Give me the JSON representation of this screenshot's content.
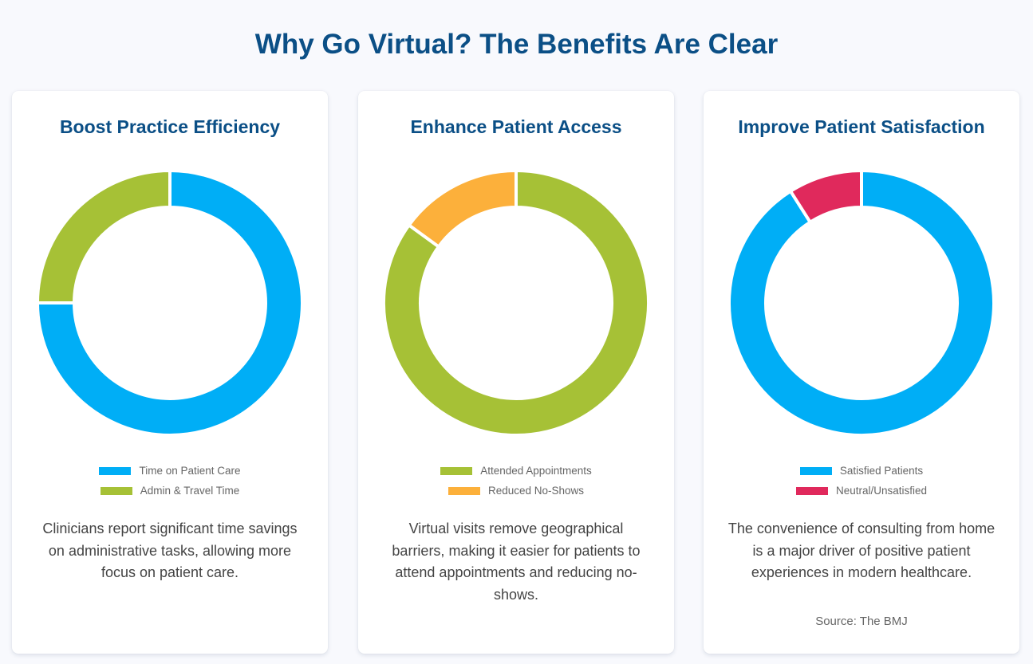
{
  "page_title": "Why Go Virtual? The Benefits Are Clear",
  "cards": [
    {
      "title": "Boost Practice Efficiency",
      "description": "Clinicians report significant time savings on administrative tasks, allowing more focus on patient care.",
      "source": ""
    },
    {
      "title": "Enhance Patient Access",
      "description": "Virtual visits remove geographical barriers, making it easier for patients to attend appointments and reducing no-shows.",
      "source": ""
    },
    {
      "title": "Improve Patient Satisfaction",
      "description": "The convenience of consulting from home is a major driver of positive patient experiences in modern healthcare.",
      "source": "Source: The BMJ"
    }
  ],
  "chart_data": [
    {
      "type": "pie",
      "title": "Boost Practice Efficiency",
      "categories": [
        "Time on Patient Care",
        "Admin & Travel Time"
      ],
      "values": [
        75,
        25
      ],
      "colors": [
        "#00aef6",
        "#a6c136"
      ],
      "legend_position": "bottom"
    },
    {
      "type": "pie",
      "title": "Enhance Patient Access",
      "categories": [
        "Attended Appointments",
        "Reduced No-Shows"
      ],
      "values": [
        85,
        15
      ],
      "colors": [
        "#a6c136",
        "#fcb03b"
      ],
      "legend_position": "bottom"
    },
    {
      "type": "pie",
      "title": "Improve Patient Satisfaction",
      "categories": [
        "Satisfied Patients",
        "Neutral/Unsatisfied"
      ],
      "values": [
        91,
        9
      ],
      "colors": [
        "#00aef6",
        "#e0295c"
      ],
      "legend_position": "bottom"
    }
  ]
}
